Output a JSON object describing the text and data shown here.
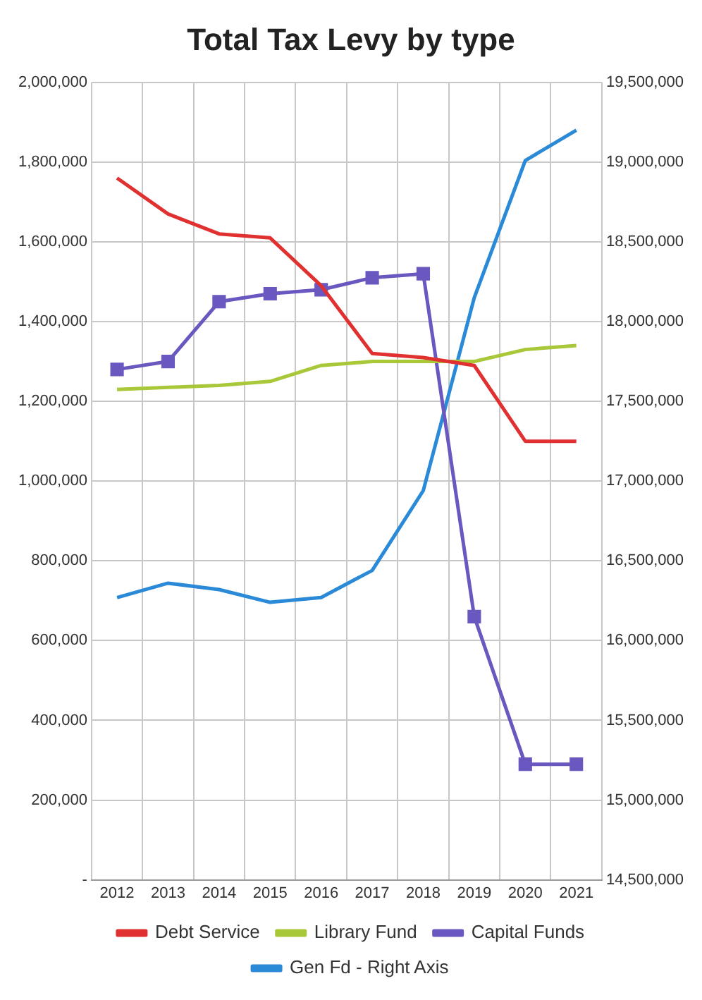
{
  "chart_data": {
    "type": "line",
    "title": "Total Tax Levy by type",
    "categories": [
      "2012",
      "2013",
      "2014",
      "2015",
      "2016",
      "2017",
      "2018",
      "2019",
      "2020",
      "2021"
    ],
    "series": [
      {
        "name": "Debt Service",
        "color": "#e03030",
        "marker": "none",
        "values": [
          1760000,
          1670000,
          1620000,
          1610000,
          1490000,
          1320000,
          1310000,
          1290000,
          1100000,
          1100000
        ]
      },
      {
        "name": "Library Fund",
        "color": "#a8c83a",
        "marker": "none",
        "values": [
          1230000,
          1235000,
          1240000,
          1250000,
          1290000,
          1300000,
          1300000,
          1300000,
          1330000,
          1340000
        ]
      },
      {
        "name": "Capital Funds",
        "color": "#6a58c0",
        "marker": "square",
        "values": [
          1280000,
          1300000,
          1450000,
          1470000,
          1480000,
          1510000,
          1520000,
          660000,
          290000,
          290000
        ]
      },
      {
        "name": "Gen Fd - Right Axis",
        "color": "#2a8ad8",
        "marker": "none",
        "axis": "y2",
        "values": [
          16270000,
          16360000,
          16320000,
          16240000,
          16270000,
          16440000,
          16940000,
          18150000,
          19010000,
          19200000
        ]
      }
    ],
    "ylim": [
      0,
      2000000
    ],
    "yticks": [
      {
        "value": 0,
        "label": "-"
      },
      {
        "value": 200000,
        "label": "200,000"
      },
      {
        "value": 400000,
        "label": "400,000"
      },
      {
        "value": 600000,
        "label": "600,000"
      },
      {
        "value": 800000,
        "label": "800,000"
      },
      {
        "value": 1000000,
        "label": "1,000,000"
      },
      {
        "value": 1200000,
        "label": "1,200,000"
      },
      {
        "value": 1400000,
        "label": "1,400,000"
      },
      {
        "value": 1600000,
        "label": "1,600,000"
      },
      {
        "value": 1800000,
        "label": "1,800,000"
      },
      {
        "value": 2000000,
        "label": "2,000,000"
      }
    ],
    "y2lim": [
      14500000,
      19500000
    ],
    "y2ticks": [
      {
        "value": 14500000,
        "label": "14,500,000"
      },
      {
        "value": 15000000,
        "label": "15,000,000"
      },
      {
        "value": 15500000,
        "label": "15,500,000"
      },
      {
        "value": 16000000,
        "label": "16,000,000"
      },
      {
        "value": 16500000,
        "label": "16,500,000"
      },
      {
        "value": 17000000,
        "label": "17,000,000"
      },
      {
        "value": 17500000,
        "label": "17,500,000"
      },
      {
        "value": 18000000,
        "label": "18,000,000"
      },
      {
        "value": 18500000,
        "label": "18,500,000"
      },
      {
        "value": 19000000,
        "label": "19,000,000"
      },
      {
        "value": 19500000,
        "label": "19,500,000"
      }
    ],
    "grid": true,
    "legend": "bottom"
  }
}
